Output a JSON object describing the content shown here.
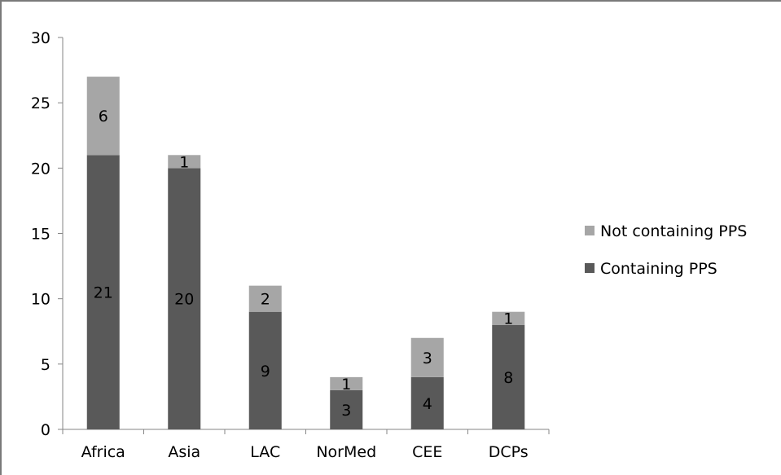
{
  "chart_data": {
    "type": "bar",
    "stacked": true,
    "categories": [
      "Africa",
      "Asia",
      "LAC",
      "NorMed",
      "CEE",
      "DCPs"
    ],
    "series": [
      {
        "name": "Containing PPS",
        "values": [
          21,
          20,
          9,
          3,
          4,
          8
        ],
        "color": "#595959"
      },
      {
        "name": "Not containing PPS",
        "values": [
          6,
          1,
          2,
          1,
          3,
          1
        ],
        "color": "#a6a6a6"
      }
    ],
    "ylim": [
      0,
      30
    ],
    "yticks": [
      0,
      5,
      10,
      15,
      20,
      25,
      30
    ],
    "grid": false,
    "legend_position": "right",
    "legend_order": [
      "Not containing PPS",
      "Containing PPS"
    ],
    "data_labels": true
  }
}
